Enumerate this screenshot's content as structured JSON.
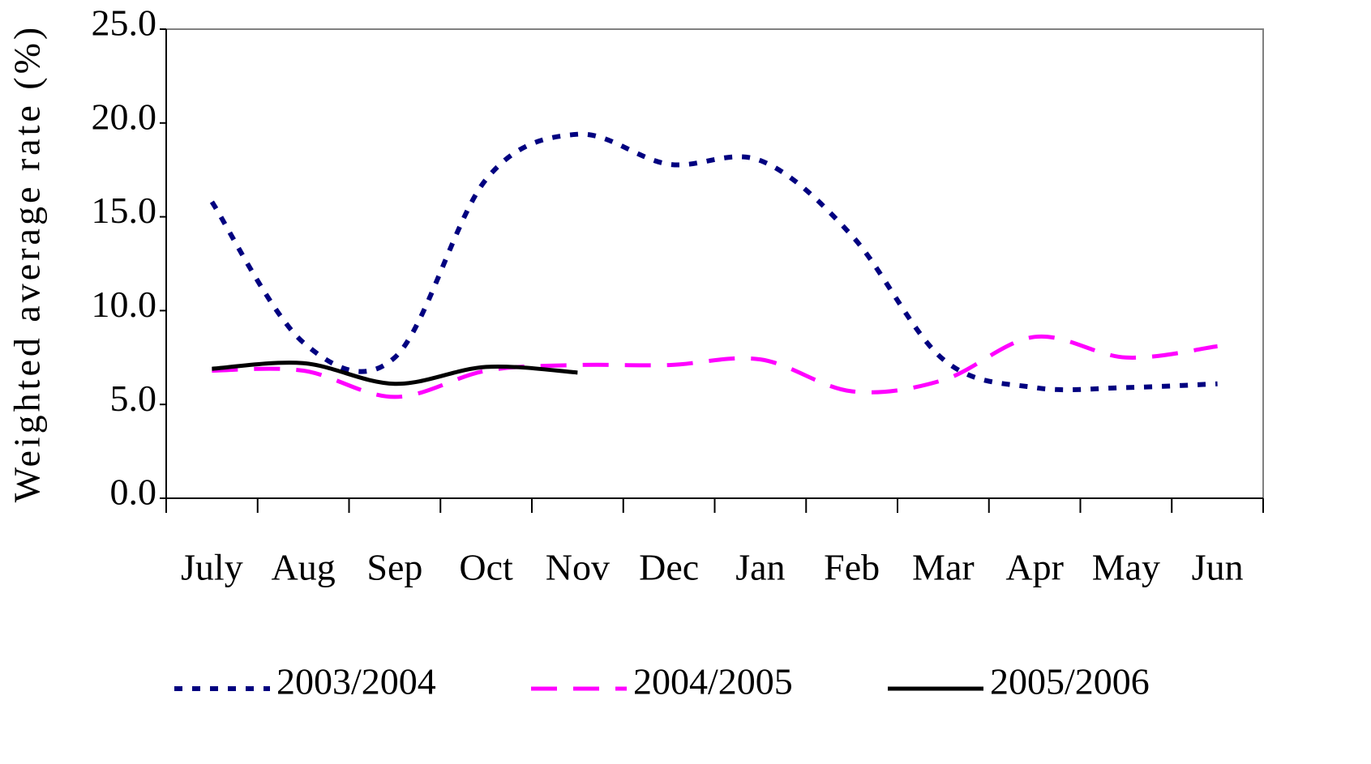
{
  "chart_data": {
    "type": "line",
    "y_label": "Weighted average rate (%)",
    "categories": [
      "July",
      "Aug",
      "Sep",
      "Oct",
      "Nov",
      "Dec",
      "Jan",
      "Feb",
      "Mar",
      "Apr",
      "May",
      "Jun"
    ],
    "series": [
      {
        "name": "2003/2004",
        "color": "#000080",
        "style": "dotted",
        "values": [
          15.8,
          8.3,
          7.5,
          17.0,
          19.4,
          17.8,
          18.0,
          14.0,
          7.4,
          5.9,
          5.9,
          6.1
        ]
      },
      {
        "name": "2004/2005",
        "color": "#ff00ff",
        "style": "dashed",
        "values": [
          6.8,
          6.8,
          5.4,
          6.8,
          7.1,
          7.1,
          7.4,
          5.7,
          6.3,
          8.6,
          7.5,
          8.1
        ]
      },
      {
        "name": "2005/2006",
        "color": "#000000",
        "style": "solid",
        "values": [
          6.9,
          7.2,
          6.1,
          7.0,
          6.7,
          null,
          null,
          null,
          null,
          null,
          null,
          null
        ]
      }
    ],
    "ylim": [
      0,
      25
    ],
    "yticks": [
      {
        "value": 0,
        "label": "0.0"
      },
      {
        "value": 5,
        "label": "5.0"
      },
      {
        "value": 10,
        "label": "10.0"
      },
      {
        "value": 15,
        "label": "15.0"
      },
      {
        "value": 20,
        "label": "20.0"
      },
      {
        "value": 25,
        "label": "25.0"
      }
    ],
    "grid": false,
    "legend": "bottom"
  }
}
